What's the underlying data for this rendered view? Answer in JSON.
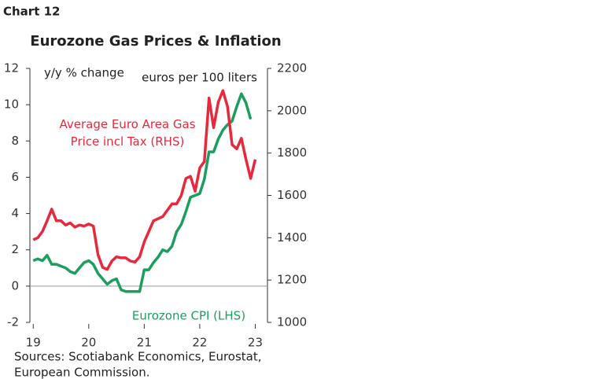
{
  "header": {
    "label": "Chart 12"
  },
  "chart_data": {
    "type": "line",
    "title": "Eurozone Gas Prices & Inflation",
    "y_label": "y/y % change",
    "y2_label": "euros per 100 liters",
    "sources": [
      "Sources: Scotiabank Economics, Eurostat,",
      "European Commission."
    ],
    "xlim": [
      18.94,
      23.22
    ],
    "xticks": [
      19,
      20,
      21,
      22,
      23
    ],
    "ylim": [
      -2,
      12
    ],
    "yticks": [
      -2,
      0,
      2,
      4,
      6,
      8,
      10,
      12
    ],
    "y2lim": [
      1000,
      2200
    ],
    "y2ticks": [
      1000,
      1200,
      1400,
      1600,
      1800,
      2000,
      2200
    ],
    "zero_line": true,
    "series": [
      {
        "name": "Eurozone CPI (LHS)",
        "color": "#1e9e5e",
        "axis": "y",
        "x": [
          19,
          19.083,
          19.167,
          19.25,
          19.333,
          19.417,
          19.5,
          19.583,
          19.667,
          19.75,
          19.833,
          19.917,
          20,
          20.083,
          20.167,
          20.25,
          20.333,
          20.417,
          20.5,
          20.583,
          20.667,
          20.75,
          20.833,
          20.917,
          21,
          21.083,
          21.167,
          21.25,
          21.333,
          21.417,
          21.5,
          21.583,
          21.667,
          21.75,
          21.833,
          21.917,
          22,
          22.083,
          22.167,
          22.25,
          22.333,
          22.417,
          22.5,
          22.583,
          22.667,
          22.75,
          22.833,
          22.917
        ],
        "values": [
          1.4,
          1.5,
          1.4,
          1.7,
          1.2,
          1.2,
          1.1,
          1.0,
          0.8,
          0.7,
          1.0,
          1.3,
          1.4,
          1.2,
          0.7,
          0.4,
          0.1,
          0.3,
          0.4,
          -0.2,
          -0.3,
          -0.3,
          -0.3,
          -0.3,
          0.9,
          0.9,
          1.3,
          1.6,
          2.0,
          1.9,
          2.2,
          3.0,
          3.4,
          4.1,
          4.9,
          5.0,
          5.1,
          5.9,
          7.4,
          7.4,
          8.1,
          8.6,
          8.9,
          9.1,
          9.9,
          10.6,
          10.1,
          9.2
        ]
      },
      {
        "name": "Average Euro Area Gas Price incl Tax (RHS)",
        "color": "#e8283c",
        "axis": "y2",
        "x": [
          19,
          19.083,
          19.167,
          19.25,
          19.333,
          19.417,
          19.5,
          19.583,
          19.667,
          19.75,
          19.833,
          19.917,
          20,
          20.083,
          20.167,
          20.25,
          20.333,
          20.417,
          20.5,
          20.583,
          20.667,
          20.75,
          20.833,
          20.917,
          21,
          21.083,
          21.167,
          21.25,
          21.333,
          21.417,
          21.5,
          21.583,
          21.667,
          21.75,
          21.833,
          21.917,
          22,
          22.083,
          22.167,
          22.25,
          22.333,
          22.417,
          22.5,
          22.583,
          22.667,
          22.75,
          22.833,
          22.917,
          23
        ],
        "values": [
          1390,
          1400,
          1430,
          1480,
          1535,
          1480,
          1480,
          1460,
          1470,
          1450,
          1460,
          1455,
          1465,
          1455,
          1320,
          1260,
          1250,
          1290,
          1310,
          1305,
          1305,
          1290,
          1285,
          1310,
          1380,
          1430,
          1480,
          1490,
          1500,
          1530,
          1560,
          1560,
          1600,
          1680,
          1690,
          1620,
          1730,
          1760,
          2060,
          1920,
          2040,
          2095,
          2020,
          1840,
          1820,
          1870,
          1770,
          1680,
          1770
        ]
      }
    ]
  }
}
